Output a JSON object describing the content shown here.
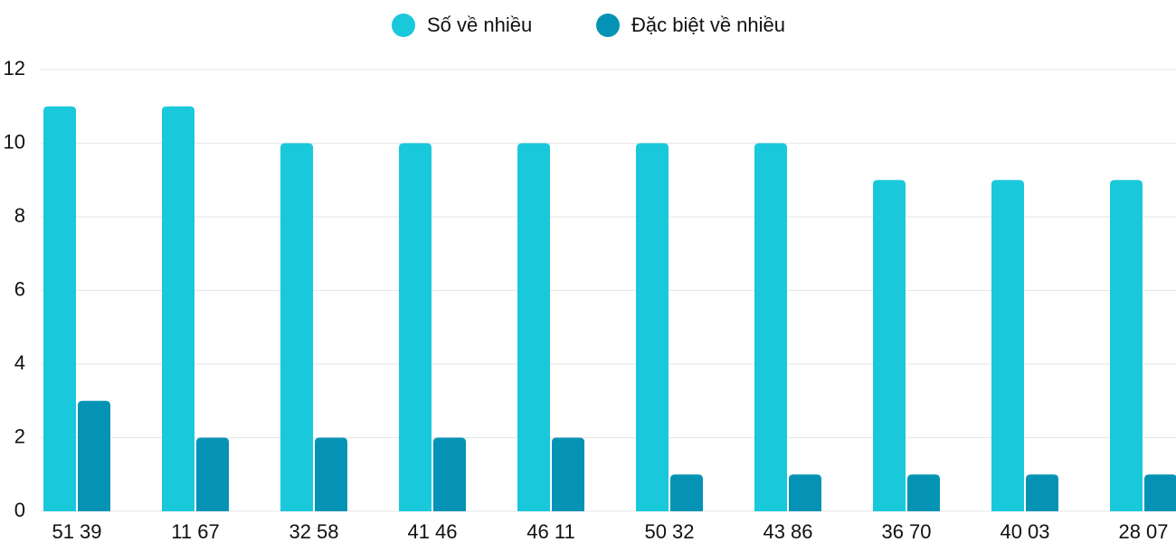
{
  "chart_data": {
    "type": "bar",
    "categories": [
      "51 39",
      "11 67",
      "32 58",
      "41 46",
      "46 11",
      "50 32",
      "43 86",
      "36 70",
      "40 03",
      "28 07"
    ],
    "series": [
      {
        "name": "Số về nhiều",
        "color": "#1ac8db",
        "values": [
          11,
          11,
          10,
          10,
          10,
          10,
          10,
          9,
          9,
          9
        ]
      },
      {
        "name": "Đặc biệt về nhiều",
        "color": "#0593b5",
        "values": [
          3,
          2,
          2,
          2,
          2,
          1,
          1,
          1,
          1,
          1
        ]
      }
    ],
    "ylim": [
      0,
      12
    ],
    "yticks": [
      0,
      2,
      4,
      6,
      8,
      10,
      12
    ],
    "grid": true,
    "legend": "top"
  }
}
